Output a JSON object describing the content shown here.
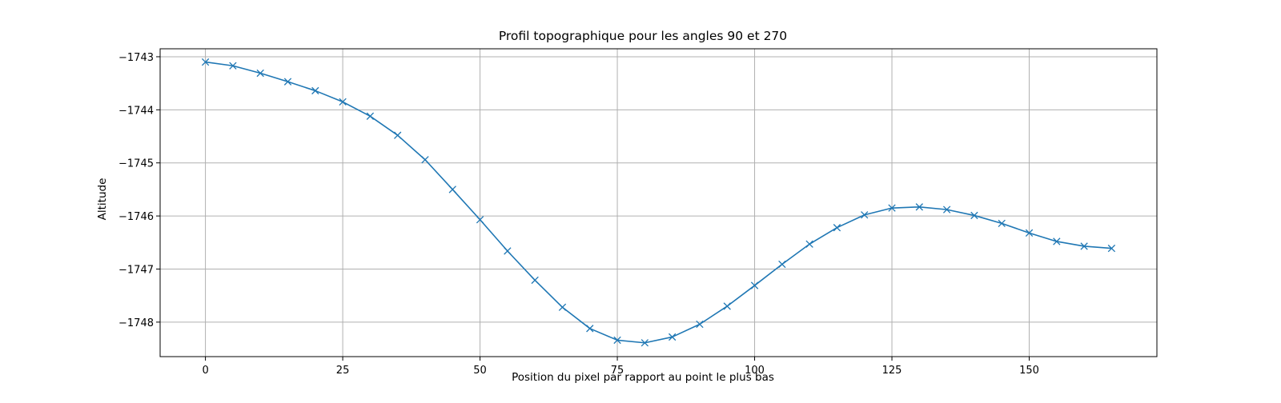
{
  "chart_data": {
    "type": "line",
    "title": "Profil topographique pour les angles 90 et 270",
    "xlabel": "Position du pixel par rapport au point le plus bas",
    "ylabel": "Altitude",
    "xlim": [
      -8.25,
      173.25
    ],
    "ylim": [
      -1748.65,
      -1742.85
    ],
    "xticks": [
      0,
      25,
      50,
      75,
      100,
      125,
      150
    ],
    "xtick_labels": [
      "0",
      "25",
      "50",
      "75",
      "100",
      "125",
      "150"
    ],
    "yticks": [
      -1743,
      -1744,
      -1745,
      -1746,
      -1747,
      -1748
    ],
    "ytick_labels": [
      "−1743",
      "−1744",
      "−1745",
      "−1746",
      "−1747",
      "−1748"
    ],
    "grid": true,
    "marker": "x",
    "series": [
      {
        "color": "#1f77b4",
        "x": [
          0,
          5,
          10,
          15,
          20,
          25,
          30,
          35,
          40,
          45,
          50,
          55,
          60,
          65,
          70,
          75,
          80,
          85,
          90,
          95,
          100,
          105,
          110,
          115,
          120,
          125,
          130,
          135,
          140,
          145,
          150,
          155,
          160,
          165
        ],
        "y": [
          -1743.1,
          -1743.17,
          -1743.31,
          -1743.47,
          -1743.64,
          -1743.85,
          -1744.12,
          -1744.48,
          -1744.94,
          -1745.5,
          -1746.07,
          -1746.66,
          -1747.21,
          -1747.72,
          -1748.12,
          -1748.34,
          -1748.39,
          -1748.28,
          -1748.04,
          -1747.7,
          -1747.31,
          -1746.91,
          -1746.53,
          -1746.22,
          -1745.98,
          -1745.85,
          -1745.83,
          -1745.88,
          -1745.99,
          -1746.14,
          -1746.32,
          -1746.48,
          -1746.57,
          -1746.61
        ]
      }
    ]
  }
}
